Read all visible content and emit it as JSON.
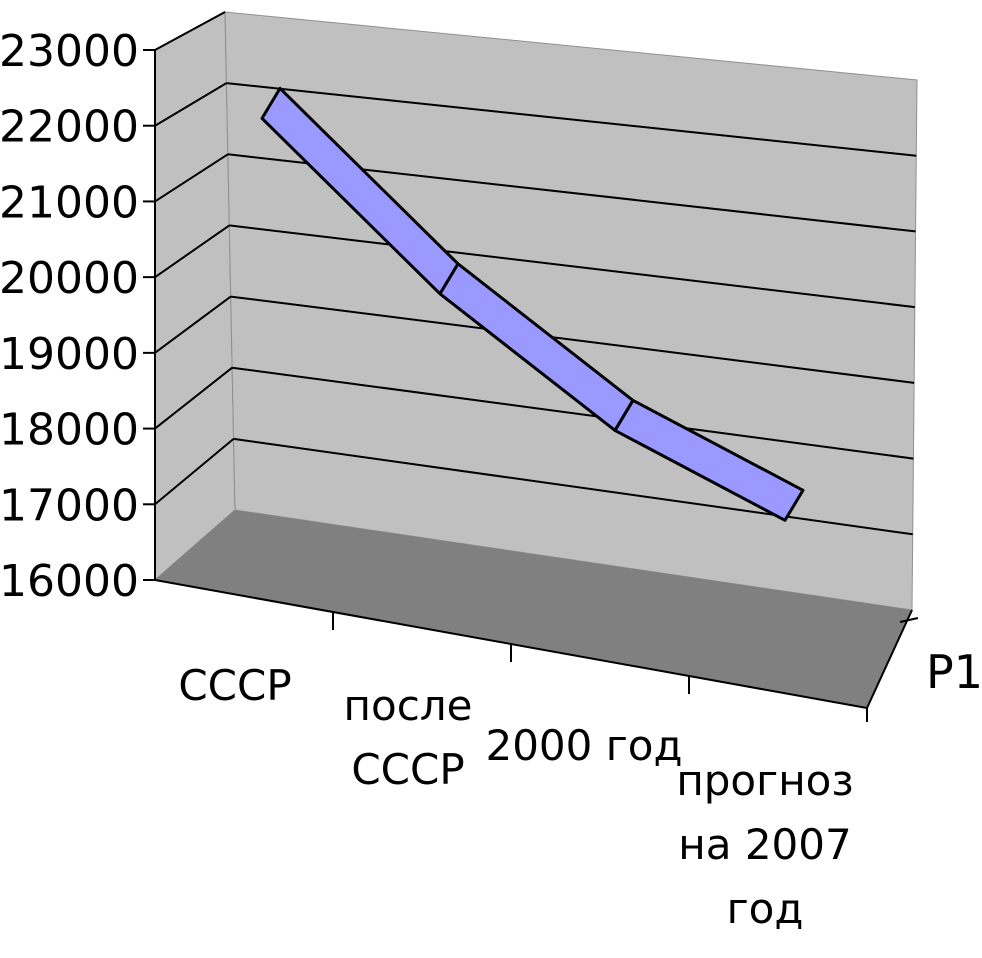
{
  "chart_data": {
    "type": "line",
    "style": "3d-ribbon",
    "categories": [
      [
        "СССР"
      ],
      [
        "после",
        "СССР"
      ],
      [
        "2000 год"
      ],
      [
        "прогноз",
        "на 2007",
        "год"
      ]
    ],
    "series": [
      {
        "name": "Р1",
        "values": [
          22700,
          20600,
          19000,
          18000
        ]
      }
    ],
    "ylim": [
      16000,
      23000
    ],
    "yticks": [
      "16000",
      "17000",
      "18000",
      "19000",
      "20000",
      "21000",
      "22000",
      "23000"
    ],
    "grid": true,
    "legend": "right",
    "colors": {
      "ribbon": "#9999ff",
      "wall": "#c0c0c0",
      "floor": "#808080",
      "grid": "#000000"
    }
  }
}
